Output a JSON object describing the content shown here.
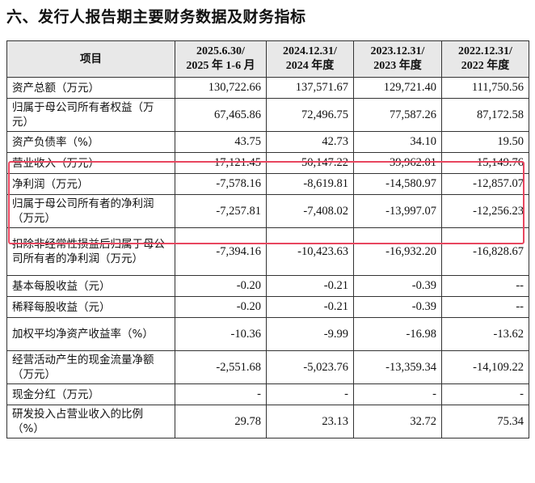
{
  "title": "六、发行人报告期主要财务数据及财务指标",
  "header": {
    "col_label": "项目",
    "periods": [
      {
        "line1": "2025.6.30/",
        "line2": "2025 年 1-6 月"
      },
      {
        "line1": "2024.12.31/",
        "line2": "2024 年度"
      },
      {
        "line1": "2023.12.31/",
        "line2": "2023 年度"
      },
      {
        "line1": "2022.12.31/",
        "line2": "2022 年度"
      }
    ]
  },
  "rows": [
    {
      "label": "资产总额（万元）",
      "values": [
        "130,722.66",
        "137,571.67",
        "129,721.40",
        "111,750.56"
      ]
    },
    {
      "label": "归属于母公司所有者权益（万元）",
      "values": [
        "67,465.86",
        "72,496.75",
        "77,587.26",
        "87,172.58"
      ]
    },
    {
      "label": "资产负债率（%）",
      "values": [
        "43.75",
        "42.73",
        "34.10",
        "19.50"
      ]
    },
    {
      "label": "营业收入（万元）",
      "values": [
        "17,121.45",
        "50,147.22",
        "39,962.01",
        "15,149.76"
      ]
    },
    {
      "label": "净利润（万元）",
      "values": [
        "-7,578.16",
        "-8,619.81",
        "-14,580.97",
        "-12,857.07"
      ]
    },
    {
      "label": "归属于母公司所有者的净利润（万元）",
      "values": [
        "-7,257.81",
        "-7,408.02",
        "-13,997.07",
        "-12,256.23"
      ]
    },
    {
      "label": "扣除非经常性损益后归属于母公司所有者的净利润（万元）",
      "values": [
        "-7,394.16",
        "-10,423.63",
        "-16,932.20",
        "-16,828.67"
      ]
    },
    {
      "label": "基本每股收益（元）",
      "values": [
        "-0.20",
        "-0.21",
        "-0.39",
        "--"
      ]
    },
    {
      "label": "稀释每股收益（元）",
      "values": [
        "-0.20",
        "-0.21",
        "-0.39",
        "--"
      ]
    },
    {
      "label": "加权平均净资产收益率（%）",
      "values": [
        "-10.36",
        "-9.99",
        "-16.98",
        "-13.62"
      ]
    },
    {
      "label": "经营活动产生的现金流量净额（万元）",
      "values": [
        "-2,551.68",
        "-5,023.76",
        "-13,359.34",
        "-14,109.22"
      ]
    },
    {
      "label": "现金分红（万元）",
      "values": [
        "-",
        "-",
        "-",
        "-"
      ]
    },
    {
      "label": "研发投入占营业收入的比例（%）",
      "values": [
        "29.78",
        "23.13",
        "32.72",
        "75.34"
      ]
    }
  ],
  "highlight_color": "#e8465f"
}
